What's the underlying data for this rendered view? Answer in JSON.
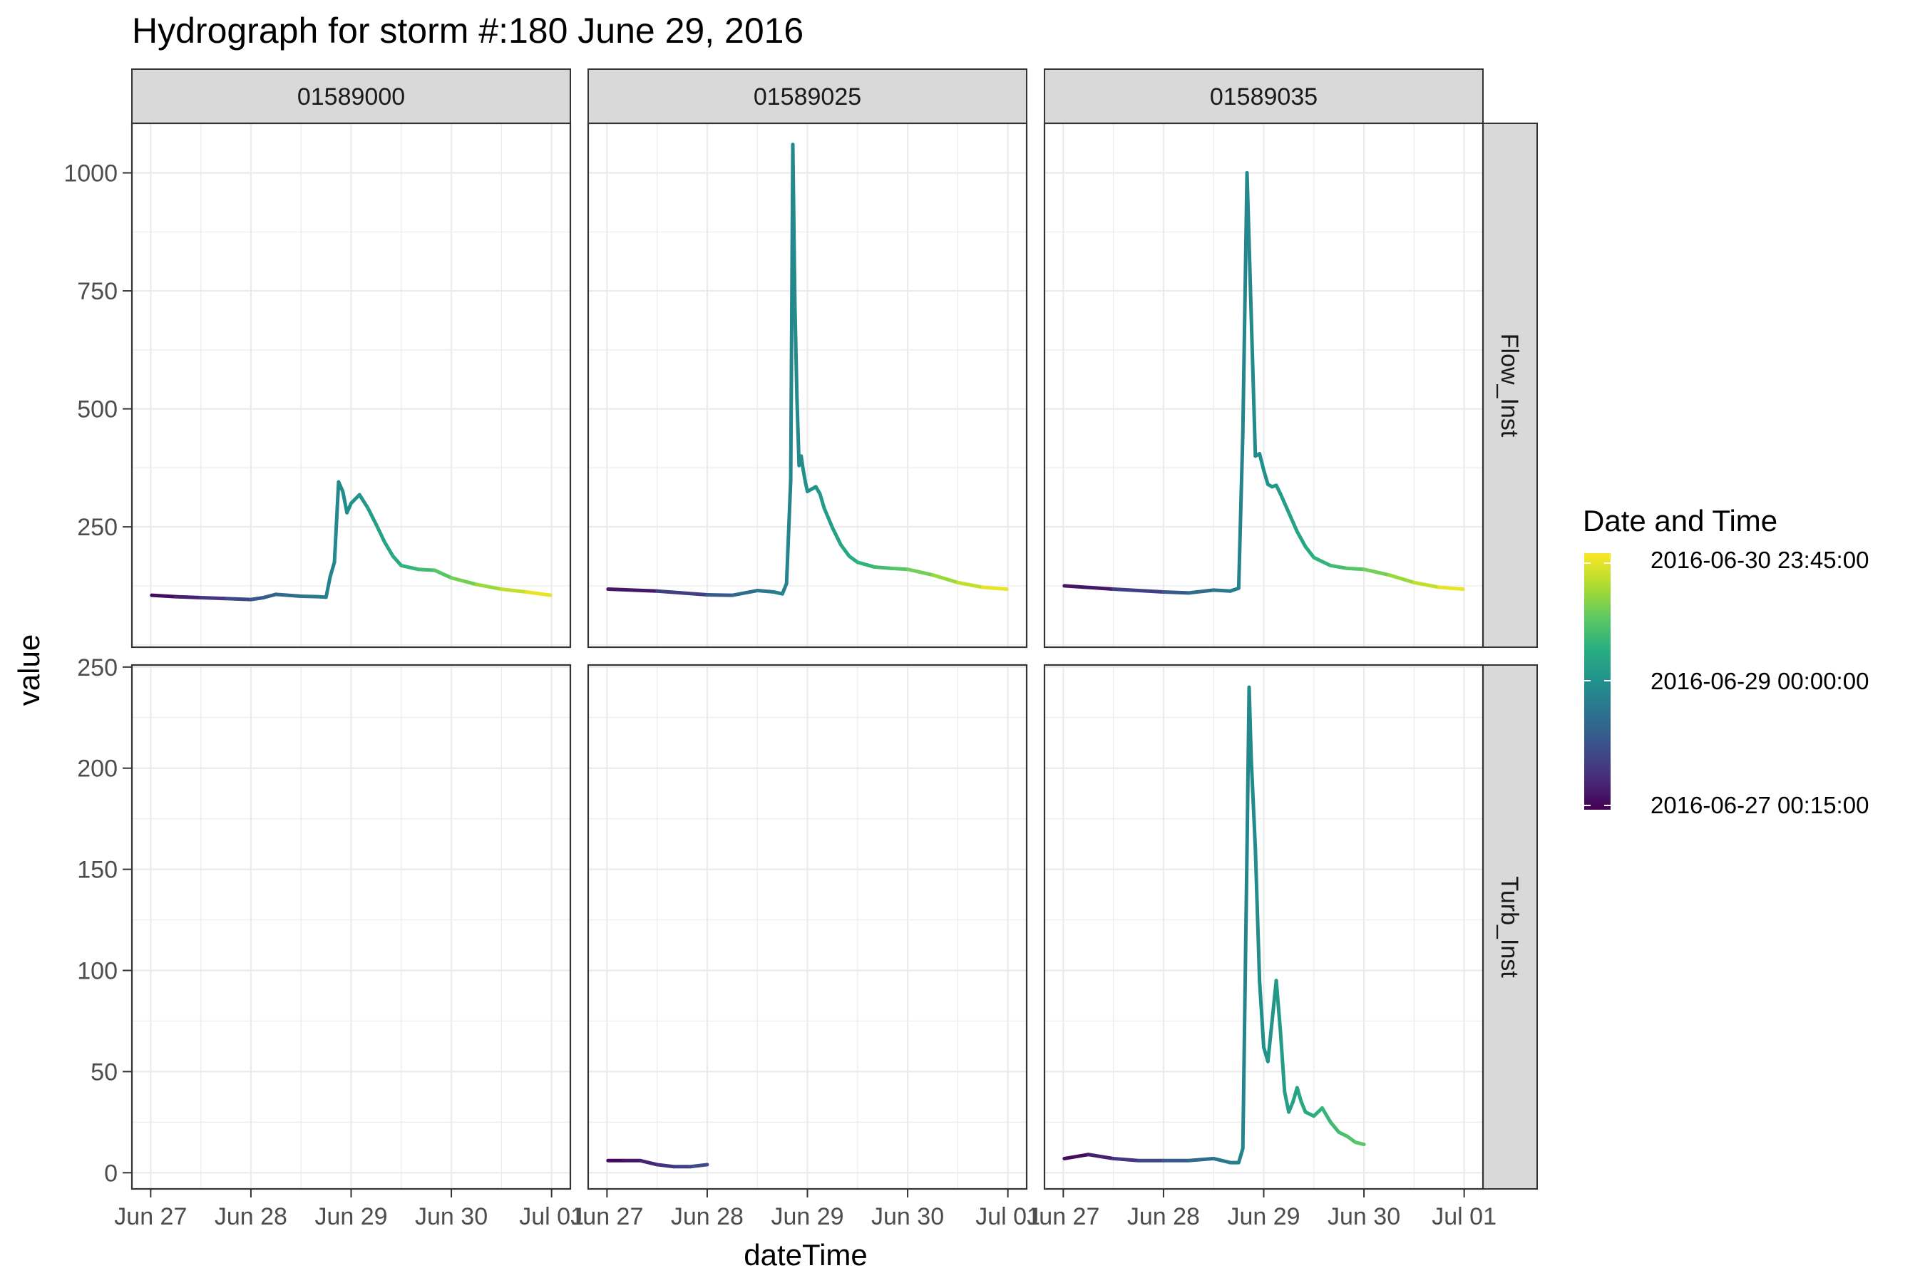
{
  "chart_data": {
    "type": "line",
    "title": "Hydrograph for storm #:180   June 29, 2016",
    "xlabel": "dateTime",
    "ylabel": "value",
    "x_ticks": [
      "Jun 27",
      "Jun 28",
      "Jun 29",
      "Jun 30",
      "Jul 01"
    ],
    "x_tick_values": [
      "2016-06-27",
      "2016-06-28",
      "2016-06-29",
      "2016-06-30",
      "2016-07-01"
    ],
    "x_range": [
      "2016-06-26 19:30",
      "2016-07-01 04:30"
    ],
    "columns": [
      "01589000",
      "01589025",
      "01589035"
    ],
    "rows": [
      {
        "name": "Flow_Inst",
        "ylim": [
          -5,
          1105
        ],
        "y_ticks": [
          250,
          500,
          750,
          1000
        ]
      },
      {
        "name": "Turb_Inst",
        "ylim": [
          -8,
          251
        ],
        "y_ticks": [
          0,
          50,
          100,
          150,
          200,
          250
        ]
      }
    ],
    "grid": true,
    "legend": {
      "title": "Date and Time",
      "placement": "right",
      "labels": [
        "2016-06-30 23:45:00",
        "2016-06-29 00:00:00",
        "2016-06-27 00:15:00"
      ],
      "colormap": "viridis",
      "range": [
        "2016-06-27 00:15:00",
        "2016-06-30 23:45:00"
      ]
    },
    "panels": [
      {
        "station": "01589000",
        "variable": "Flow_Inst",
        "x": [
          "2016-06-27 00:15",
          "2016-06-27 06:00",
          "2016-06-27 12:00",
          "2016-06-27 18:00",
          "2016-06-28 00:00",
          "2016-06-28 03:00",
          "2016-06-28 06:00",
          "2016-06-28 12:00",
          "2016-06-28 16:00",
          "2016-06-28 18:00",
          "2016-06-28 19:00",
          "2016-06-28 20:00",
          "2016-06-28 21:00",
          "2016-06-28 22:00",
          "2016-06-28 23:00",
          "2016-06-29 00:00",
          "2016-06-29 02:00",
          "2016-06-29 04:00",
          "2016-06-29 06:00",
          "2016-06-29 08:00",
          "2016-06-29 10:00",
          "2016-06-29 12:00",
          "2016-06-29 16:00",
          "2016-06-29 20:00",
          "2016-06-30 00:00",
          "2016-06-30 06:00",
          "2016-06-30 12:00",
          "2016-06-30 18:00",
          "2016-06-30 23:45"
        ],
        "y": [
          105,
          102,
          100,
          98,
          96,
          100,
          107,
          103,
          102,
          101,
          145,
          175,
          345,
          325,
          280,
          300,
          318,
          290,
          255,
          218,
          188,
          168,
          160,
          158,
          142,
          128,
          118,
          112,
          105
        ]
      },
      {
        "station": "01589025",
        "variable": "Flow_Inst",
        "x": [
          "2016-06-27 00:15",
          "2016-06-27 12:00",
          "2016-06-28 00:00",
          "2016-06-28 06:00",
          "2016-06-28 12:00",
          "2016-06-28 16:00",
          "2016-06-28 18:00",
          "2016-06-28 19:00",
          "2016-06-28 20:00",
          "2016-06-28 20:30",
          "2016-06-28 21:00",
          "2016-06-28 21:30",
          "2016-06-28 22:00",
          "2016-06-28 22:30",
          "2016-06-28 23:00",
          "2016-06-28 23:30",
          "2016-06-29 00:00",
          "2016-06-29 01:00",
          "2016-06-29 02:00",
          "2016-06-29 03:00",
          "2016-06-29 04:00",
          "2016-06-29 06:00",
          "2016-06-29 08:00",
          "2016-06-29 10:00",
          "2016-06-29 12:00",
          "2016-06-29 16:00",
          "2016-06-29 20:00",
          "2016-06-30 00:00",
          "2016-06-30 06:00",
          "2016-06-30 12:00",
          "2016-06-30 18:00",
          "2016-06-30 23:45"
        ],
        "y": [
          118,
          114,
          106,
          105,
          115,
          112,
          108,
          130,
          350,
          1060,
          720,
          520,
          380,
          400,
          370,
          345,
          325,
          330,
          335,
          320,
          290,
          248,
          212,
          188,
          175,
          165,
          162,
          160,
          148,
          132,
          122,
          118
        ]
      },
      {
        "station": "01589035",
        "variable": "Flow_Inst",
        "x": [
          "2016-06-27 00:15",
          "2016-06-27 12:00",
          "2016-06-28 00:00",
          "2016-06-28 06:00",
          "2016-06-28 12:00",
          "2016-06-28 16:00",
          "2016-06-28 18:00",
          "2016-06-28 19:00",
          "2016-06-28 20:00",
          "2016-06-28 21:00",
          "2016-06-28 22:00",
          "2016-06-28 23:00",
          "2016-06-29 00:00",
          "2016-06-29 01:00",
          "2016-06-29 02:00",
          "2016-06-29 03:00",
          "2016-06-29 04:00",
          "2016-06-29 06:00",
          "2016-06-29 08:00",
          "2016-06-29 10:00",
          "2016-06-29 12:00",
          "2016-06-29 16:00",
          "2016-06-29 20:00",
          "2016-06-30 00:00",
          "2016-06-30 06:00",
          "2016-06-30 12:00",
          "2016-06-30 18:00",
          "2016-06-30 23:45"
        ],
        "y": [
          125,
          118,
          112,
          110,
          116,
          114,
          120,
          450,
          1000,
          700,
          400,
          405,
          370,
          340,
          335,
          338,
          320,
          280,
          240,
          208,
          185,
          168,
          162,
          160,
          148,
          132,
          122,
          118
        ]
      },
      {
        "station": "01589000",
        "variable": "Turb_Inst",
        "x": [],
        "y": []
      },
      {
        "station": "01589025",
        "variable": "Turb_Inst",
        "x": [
          "2016-06-27 00:15",
          "2016-06-27 04:00",
          "2016-06-27 08:00",
          "2016-06-27 12:00",
          "2016-06-27 16:00",
          "2016-06-27 20:00",
          "2016-06-28 00:00"
        ],
        "y": [
          6,
          6,
          6,
          4,
          3,
          3,
          4
        ]
      },
      {
        "station": "01589035",
        "variable": "Turb_Inst",
        "x": [
          "2016-06-27 00:15",
          "2016-06-27 06:00",
          "2016-06-27 12:00",
          "2016-06-27 18:00",
          "2016-06-28 00:00",
          "2016-06-28 06:00",
          "2016-06-28 12:00",
          "2016-06-28 16:00",
          "2016-06-28 18:00",
          "2016-06-28 19:00",
          "2016-06-28 20:00",
          "2016-06-28 20:30",
          "2016-06-28 21:00",
          "2016-06-28 22:00",
          "2016-06-28 23:00",
          "2016-06-29 00:00",
          "2016-06-29 01:00",
          "2016-06-29 02:00",
          "2016-06-29 03:00",
          "2016-06-29 04:00",
          "2016-06-29 05:00",
          "2016-06-29 06:00",
          "2016-06-29 07:00",
          "2016-06-29 08:00",
          "2016-06-29 09:00",
          "2016-06-29 10:00",
          "2016-06-29 12:00",
          "2016-06-29 14:00",
          "2016-06-29 16:00",
          "2016-06-29 18:00",
          "2016-06-29 20:00",
          "2016-06-29 22:00",
          "2016-06-30 00:00"
        ],
        "y": [
          7,
          9,
          7,
          6,
          6,
          6,
          7,
          5,
          5,
          12,
          160,
          240,
          205,
          160,
          95,
          62,
          55,
          75,
          95,
          70,
          40,
          30,
          35,
          42,
          35,
          30,
          28,
          32,
          25,
          20,
          18,
          15,
          14
        ]
      }
    ]
  }
}
